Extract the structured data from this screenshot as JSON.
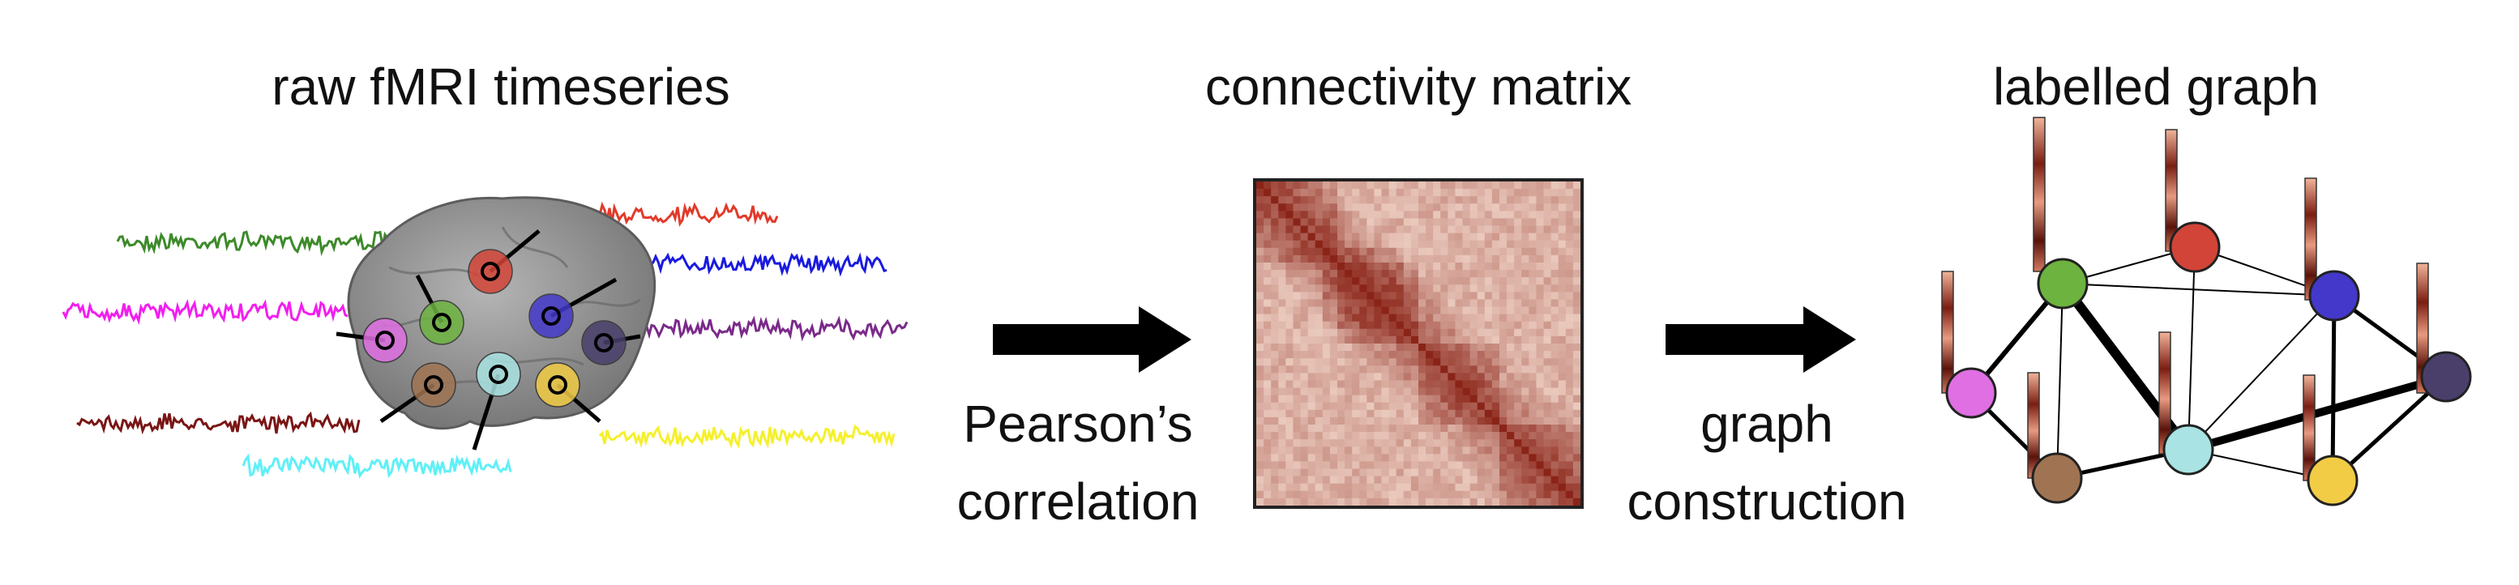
{
  "panels": {
    "timeseries_title": "raw fMRI timeseries",
    "matrix_title": "connectivity matrix",
    "graph_title": "labelled graph"
  },
  "steps": {
    "step1_line1": "Pearson’s",
    "step1_line2": "correlation",
    "step2_line1": "graph",
    "step2_line2": "construction"
  },
  "colors": {
    "region_green": "#6db33f",
    "region_red": "#d24437",
    "region_blue": "#4338c9",
    "region_pink": "#df6fe3",
    "region_purple": "#4a3f6b",
    "region_brown": "#a07452",
    "region_cyan": "#a9e3e3",
    "region_yellow": "#f2cc45",
    "trace_green": "#3d8a2a",
    "trace_red": "#e23a2a",
    "trace_blue": "#1a1ae0",
    "trace_magenta": "#f21ef0",
    "trace_purple": "#7b2a8a",
    "trace_darkred": "#7a1515",
    "trace_cyan": "#5ff0f7",
    "trace_yellow": "#f5f02c",
    "matrix_low": "#fbe6da",
    "matrix_high": "#8b2418",
    "arrow": "#000000",
    "brain": "#8d8d8d"
  }
}
